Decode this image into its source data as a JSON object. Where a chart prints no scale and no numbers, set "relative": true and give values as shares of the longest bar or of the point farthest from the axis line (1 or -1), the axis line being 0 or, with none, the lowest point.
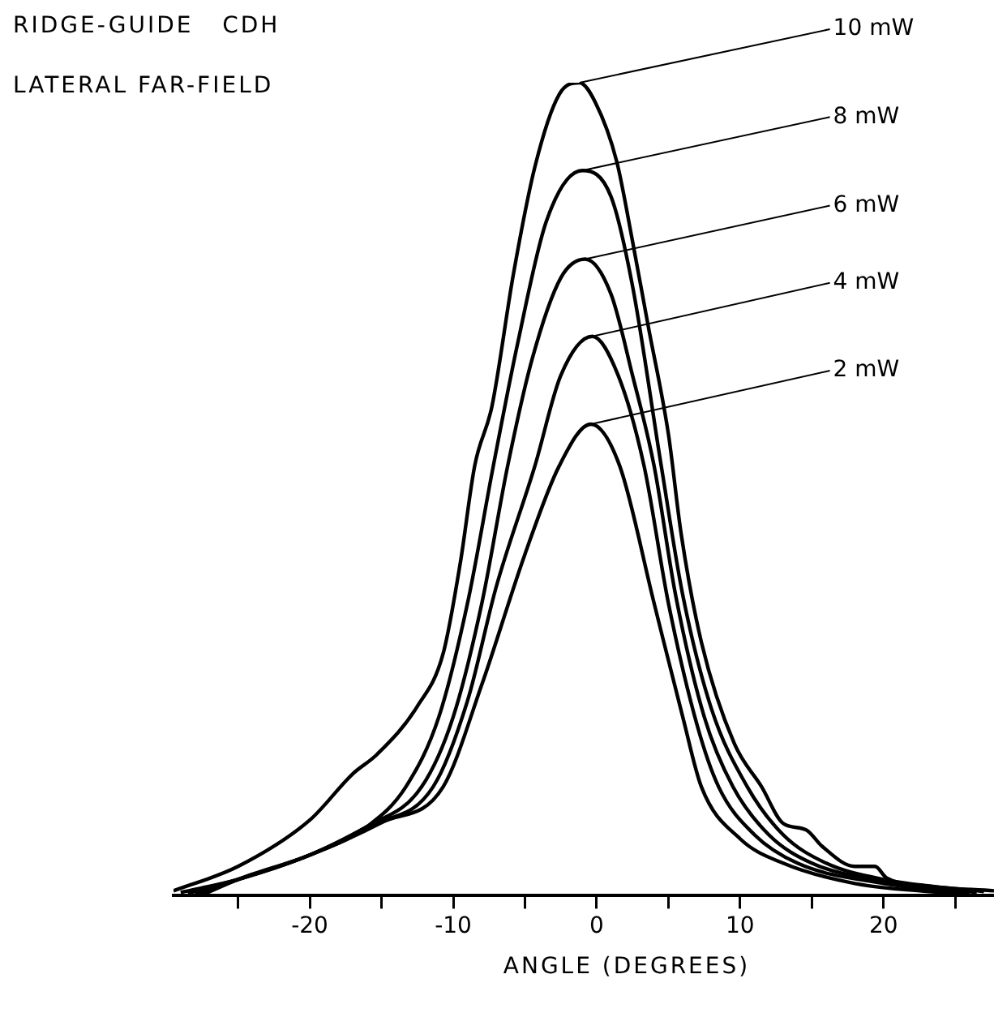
{
  "chart_data": {
    "type": "line",
    "title": "RIDGE-GUIDE   CDH",
    "subtitle": "LATERAL FAR-FIELD",
    "xlabel": "ANGLE (DEGREES)",
    "relative": true,
    "marker": "none",
    "line_style": "solid",
    "xlim": [
      -29.5,
      27.7
    ],
    "xticks": [
      {
        "value": -25,
        "label": null
      },
      -20,
      {
        "value": -15,
        "label": null
      },
      -10,
      {
        "value": -5,
        "label": null
      },
      0,
      {
        "value": 5,
        "label": null
      },
      10,
      {
        "value": 15,
        "label": null
      },
      20,
      {
        "value": 25,
        "label": null
      }
    ],
    "series": [
      {
        "name": "10 mW",
        "color": "#000000",
        "x": [
          -29.5,
          -25,
          -20,
          -17,
          -15.3,
          -12.5,
          -10.7,
          -9.5,
          -8.5,
          -7.3,
          -5.8,
          -4.3,
          -2.6,
          -1.2,
          -0.1,
          1.4,
          2.5,
          3.6,
          5,
          5.9,
          7.3,
          9.6,
          11.5,
          13,
          14.6,
          15.7,
          18,
          19.4,
          20.2,
          23,
          27.7
        ],
        "values": [
          0.006,
          0.036,
          0.093,
          0.15,
          0.174,
          0.233,
          0.298,
          0.41,
          0.529,
          0.602,
          0.765,
          0.897,
          0.986,
          1,
          0.976,
          0.903,
          0.805,
          0.7,
          0.568,
          0.444,
          0.312,
          0.187,
          0.134,
          0.089,
          0.081,
          0.061,
          0.036,
          0.036,
          0.022,
          0.012,
          0.006
        ]
      },
      {
        "name": "8 mW",
        "color": "#000000",
        "x": [
          -29,
          -25,
          -20,
          -16,
          -13.3,
          -11,
          -9,
          -7.2,
          -5.5,
          -3.5,
          -1,
          1,
          2.5,
          4.5,
          6,
          8,
          10.5,
          13,
          16,
          20,
          27
        ],
        "values": [
          0.004,
          0.02,
          0.05,
          0.085,
          0.134,
          0.22,
          0.36,
          0.529,
          0.68,
          0.83,
          0.892,
          0.86,
          0.75,
          0.529,
          0.37,
          0.23,
          0.134,
          0.075,
          0.04,
          0.02,
          0.005
        ]
      },
      {
        "name": "6 mW",
        "color": "#000000",
        "x": [
          -28.5,
          -25,
          -20,
          -16,
          -12.2,
          -10,
          -8,
          -6.2,
          -4.5,
          -2.5,
          -0.8,
          1,
          2.5,
          4,
          5.5,
          7.5,
          9.5,
          12,
          15,
          20,
          26.5
        ],
        "values": [
          0.003,
          0.02,
          0.05,
          0.085,
          0.134,
          0.22,
          0.36,
          0.529,
          0.66,
          0.76,
          0.783,
          0.74,
          0.64,
          0.529,
          0.37,
          0.22,
          0.134,
          0.075,
          0.04,
          0.018,
          0.004
        ]
      },
      {
        "name": "4 mW",
        "color": "#000000",
        "x": [
          -28,
          -25,
          -20,
          -16,
          -11.4,
          -9,
          -7,
          -4.3,
          -2.5,
          -0.3,
          1.5,
          3.3,
          5,
          7,
          8.5,
          11,
          14,
          20,
          26
        ],
        "values": [
          0.002,
          0.02,
          0.05,
          0.085,
          0.134,
          0.24,
          0.38,
          0.529,
          0.64,
          0.688,
          0.64,
          0.529,
          0.36,
          0.21,
          0.134,
          0.075,
          0.04,
          0.015,
          0.003
        ]
      },
      {
        "name": "2 mW",
        "color": "#000000",
        "x": [
          -27.5,
          -25,
          -20,
          -15,
          -10.7,
          -8,
          -5,
          -2.6,
          -0.4,
          1.6,
          4,
          6,
          7.3,
          10,
          13,
          18,
          25.5
        ],
        "values": [
          0.001,
          0.02,
          0.05,
          0.09,
          0.134,
          0.26,
          0.42,
          0.529,
          0.58,
          0.529,
          0.36,
          0.22,
          0.134,
          0.07,
          0.04,
          0.015,
          0.002
        ]
      }
    ]
  }
}
